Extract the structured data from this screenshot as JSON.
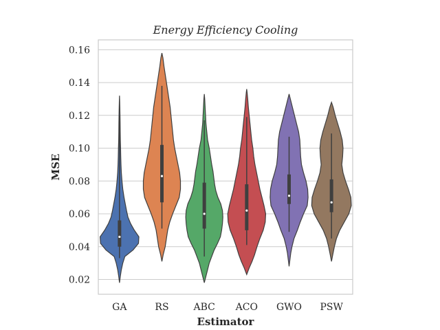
{
  "chart_data": {
    "type": "violin",
    "title": "Energy Efficiency Cooling",
    "xlabel": "Estimator",
    "ylabel": "MSE",
    "ylim": [
      0.011,
      0.166
    ],
    "yticks": [
      0.02,
      0.04,
      0.06,
      0.08,
      0.1,
      0.12,
      0.14,
      0.16
    ],
    "ytick_labels": [
      "0.02",
      "0.04",
      "0.06",
      "0.08",
      "0.10",
      "0.12",
      "0.14",
      "0.16"
    ],
    "grid": true,
    "categories": [
      "GA",
      "RS",
      "ABC",
      "ACO",
      "GWO",
      "PSW"
    ],
    "series": [
      {
        "category": "GA",
        "color": "#4c72b0",
        "min": 0.033,
        "q1": 0.04,
        "median": 0.046,
        "q3": 0.056,
        "max": 0.12,
        "density": [
          [
            0.018,
            0.0
          ],
          [
            0.022,
            0.02
          ],
          [
            0.026,
            0.045
          ],
          [
            0.03,
            0.08
          ],
          [
            0.034,
            0.13
          ],
          [
            0.038,
            0.33
          ],
          [
            0.042,
            0.46
          ],
          [
            0.046,
            0.47
          ],
          [
            0.05,
            0.36
          ],
          [
            0.054,
            0.27
          ],
          [
            0.058,
            0.205
          ],
          [
            0.062,
            0.17
          ],
          [
            0.066,
            0.14
          ],
          [
            0.07,
            0.11
          ],
          [
            0.075,
            0.08
          ],
          [
            0.08,
            0.06
          ],
          [
            0.085,
            0.045
          ],
          [
            0.09,
            0.036
          ],
          [
            0.095,
            0.03
          ],
          [
            0.1,
            0.026
          ],
          [
            0.105,
            0.02
          ],
          [
            0.11,
            0.017
          ],
          [
            0.115,
            0.015
          ],
          [
            0.12,
            0.012
          ],
          [
            0.125,
            0.008
          ],
          [
            0.129,
            0.004
          ],
          [
            0.132,
            0.0
          ]
        ]
      },
      {
        "category": "RS",
        "color": "#dd8452",
        "min": 0.051,
        "q1": 0.067,
        "median": 0.083,
        "q3": 0.102,
        "max": 0.138,
        "density": [
          [
            0.031,
            0.0
          ],
          [
            0.035,
            0.03
          ],
          [
            0.04,
            0.08
          ],
          [
            0.045,
            0.11
          ],
          [
            0.05,
            0.14
          ],
          [
            0.055,
            0.19
          ],
          [
            0.06,
            0.26
          ],
          [
            0.065,
            0.34
          ],
          [
            0.07,
            0.42
          ],
          [
            0.075,
            0.45
          ],
          [
            0.08,
            0.45
          ],
          [
            0.085,
            0.43
          ],
          [
            0.09,
            0.39
          ],
          [
            0.095,
            0.35
          ],
          [
            0.1,
            0.31
          ],
          [
            0.105,
            0.28
          ],
          [
            0.11,
            0.26
          ],
          [
            0.115,
            0.24
          ],
          [
            0.12,
            0.22
          ],
          [
            0.125,
            0.2
          ],
          [
            0.13,
            0.17
          ],
          [
            0.135,
            0.14
          ],
          [
            0.14,
            0.11
          ],
          [
            0.145,
            0.08
          ],
          [
            0.15,
            0.05
          ],
          [
            0.155,
            0.025
          ],
          [
            0.158,
            0.0
          ]
        ]
      },
      {
        "category": "ABC",
        "color": "#55a868",
        "min": 0.034,
        "q1": 0.051,
        "median": 0.06,
        "q3": 0.079,
        "max": 0.117,
        "density": [
          [
            0.018,
            0.0
          ],
          [
            0.022,
            0.04
          ],
          [
            0.026,
            0.08
          ],
          [
            0.03,
            0.12
          ],
          [
            0.034,
            0.18
          ],
          [
            0.038,
            0.24
          ],
          [
            0.042,
            0.32
          ],
          [
            0.046,
            0.39
          ],
          [
            0.05,
            0.42
          ],
          [
            0.054,
            0.44
          ],
          [
            0.058,
            0.45
          ],
          [
            0.062,
            0.44
          ],
          [
            0.066,
            0.4
          ],
          [
            0.07,
            0.33
          ],
          [
            0.074,
            0.28
          ],
          [
            0.078,
            0.25
          ],
          [
            0.082,
            0.23
          ],
          [
            0.086,
            0.21
          ],
          [
            0.09,
            0.18
          ],
          [
            0.095,
            0.15
          ],
          [
            0.1,
            0.12
          ],
          [
            0.105,
            0.08
          ],
          [
            0.11,
            0.06
          ],
          [
            0.115,
            0.04
          ],
          [
            0.12,
            0.03
          ],
          [
            0.125,
            0.02
          ],
          [
            0.13,
            0.01
          ],
          [
            0.133,
            0.0
          ]
        ]
      },
      {
        "category": "ACO",
        "color": "#c44e52",
        "min": 0.041,
        "q1": 0.05,
        "median": 0.062,
        "q3": 0.078,
        "max": 0.119,
        "density": [
          [
            0.023,
            0.0
          ],
          [
            0.027,
            0.06
          ],
          [
            0.031,
            0.13
          ],
          [
            0.035,
            0.19
          ],
          [
            0.04,
            0.25
          ],
          [
            0.045,
            0.32
          ],
          [
            0.05,
            0.4
          ],
          [
            0.055,
            0.45
          ],
          [
            0.06,
            0.46
          ],
          [
            0.065,
            0.42
          ],
          [
            0.07,
            0.37
          ],
          [
            0.075,
            0.32
          ],
          [
            0.08,
            0.28
          ],
          [
            0.085,
            0.24
          ],
          [
            0.09,
            0.2
          ],
          [
            0.095,
            0.17
          ],
          [
            0.1,
            0.15
          ],
          [
            0.105,
            0.12
          ],
          [
            0.11,
            0.1
          ],
          [
            0.115,
            0.08
          ],
          [
            0.12,
            0.06
          ],
          [
            0.125,
            0.04
          ],
          [
            0.13,
            0.025
          ],
          [
            0.134,
            0.01
          ],
          [
            0.136,
            0.0
          ]
        ]
      },
      {
        "category": "GWO",
        "color": "#8172b3",
        "min": 0.049,
        "q1": 0.066,
        "median": 0.071,
        "q3": 0.084,
        "max": 0.107,
        "density": [
          [
            0.028,
            0.0
          ],
          [
            0.032,
            0.02
          ],
          [
            0.036,
            0.04
          ],
          [
            0.04,
            0.07
          ],
          [
            0.045,
            0.12
          ],
          [
            0.05,
            0.2
          ],
          [
            0.055,
            0.27
          ],
          [
            0.06,
            0.35
          ],
          [
            0.065,
            0.44
          ],
          [
            0.07,
            0.46
          ],
          [
            0.075,
            0.45
          ],
          [
            0.08,
            0.41
          ],
          [
            0.085,
            0.35
          ],
          [
            0.09,
            0.3
          ],
          [
            0.095,
            0.28
          ],
          [
            0.1,
            0.27
          ],
          [
            0.105,
            0.26
          ],
          [
            0.11,
            0.23
          ],
          [
            0.115,
            0.18
          ],
          [
            0.12,
            0.13
          ],
          [
            0.125,
            0.08
          ],
          [
            0.13,
            0.03
          ],
          [
            0.133,
            0.0
          ]
        ]
      },
      {
        "category": "PSW",
        "color": "#937860",
        "min": 0.045,
        "q1": 0.061,
        "median": 0.067,
        "q3": 0.081,
        "max": 0.109,
        "density": [
          [
            0.031,
            0.0
          ],
          [
            0.035,
            0.03
          ],
          [
            0.04,
            0.07
          ],
          [
            0.045,
            0.12
          ],
          [
            0.05,
            0.2
          ],
          [
            0.055,
            0.31
          ],
          [
            0.06,
            0.42
          ],
          [
            0.065,
            0.48
          ],
          [
            0.07,
            0.47
          ],
          [
            0.075,
            0.41
          ],
          [
            0.08,
            0.34
          ],
          [
            0.085,
            0.28
          ],
          [
            0.09,
            0.25
          ],
          [
            0.095,
            0.27
          ],
          [
            0.1,
            0.28
          ],
          [
            0.105,
            0.26
          ],
          [
            0.11,
            0.21
          ],
          [
            0.115,
            0.15
          ],
          [
            0.12,
            0.09
          ],
          [
            0.125,
            0.04
          ],
          [
            0.128,
            0.0
          ]
        ]
      }
    ]
  }
}
